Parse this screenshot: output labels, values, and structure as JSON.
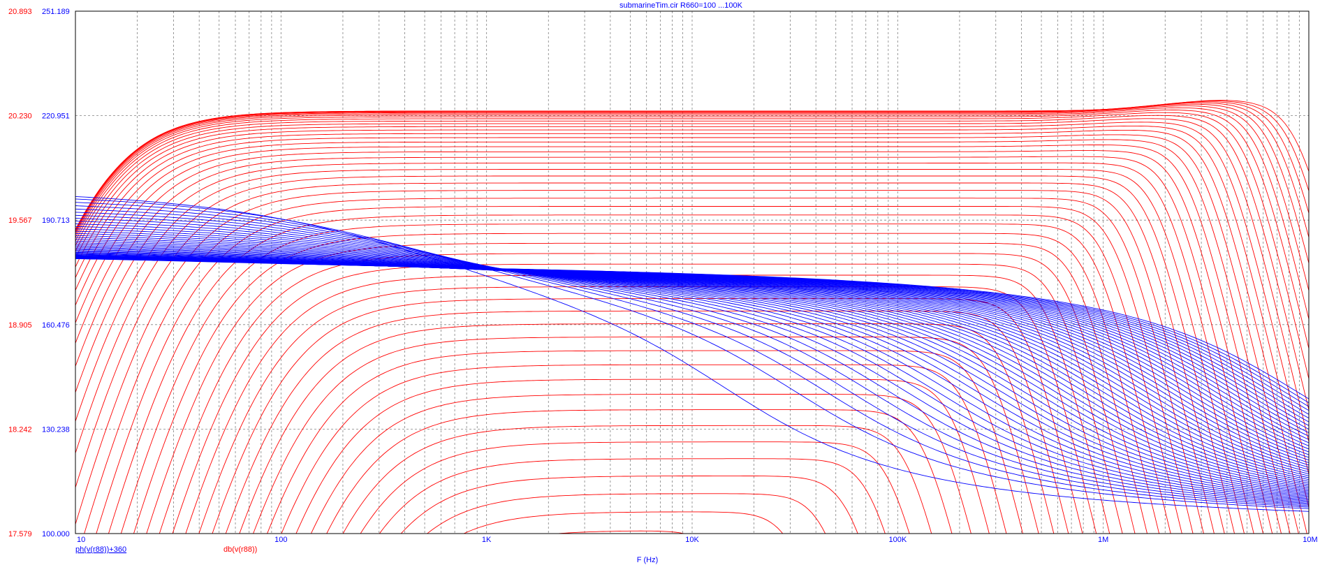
{
  "window": {
    "title": "submarineTim.cir R660=100 ...100K"
  },
  "colors": {
    "magnitude": "#ff0000",
    "phase": "#0000ff",
    "grid": "#808080",
    "axis_text": "#000080"
  },
  "chart_data": {
    "type": "line",
    "title": "submarineTim.cir R660=100 ...100K",
    "xlabel": "F (Hz)",
    "x_scale": "log",
    "xlim": [
      10,
      10000000
    ],
    "x_ticks": [
      "10",
      "100",
      "1K",
      "10K",
      "100K",
      "1M",
      "10M"
    ],
    "grid": true,
    "y_left": {
      "label": "db(v(r88))",
      "ylim": [
        17.579,
        20.893
      ],
      "ticks": [
        "20.893",
        "20.230",
        "19.567",
        "18.905",
        "18.242",
        "17.579"
      ]
    },
    "y_right": {
      "label": "ph(v(r88))+360",
      "ylim": [
        100.0,
        251.189
      ],
      "ticks": [
        "251.189",
        "220.951",
        "190.713",
        "160.476",
        "130.238",
        "100.000"
      ]
    },
    "sweep": {
      "parameter": "R660",
      "from": "100",
      "to": "100K"
    },
    "series": [
      {
        "name": "db(v(r88))",
        "axis": "left",
        "color": "#ff0000",
        "traces": 50,
        "passband_db_range": [
          17.6,
          20.26
        ],
        "peak_db": 20.33,
        "peak_freq_hz": 3000000,
        "rolloff_freq_hz_range": [
          15000,
          9000000
        ]
      },
      {
        "name": "ph(v(r88))+360",
        "axis": "right",
        "color": "#0000ff",
        "traces": 50,
        "converge_phase": 181.3,
        "converge_freq_hz": 1000,
        "low_freq_phase_range": [
          183,
          204
        ],
        "high_freq_phase_at_10M": 100
      }
    ]
  }
}
